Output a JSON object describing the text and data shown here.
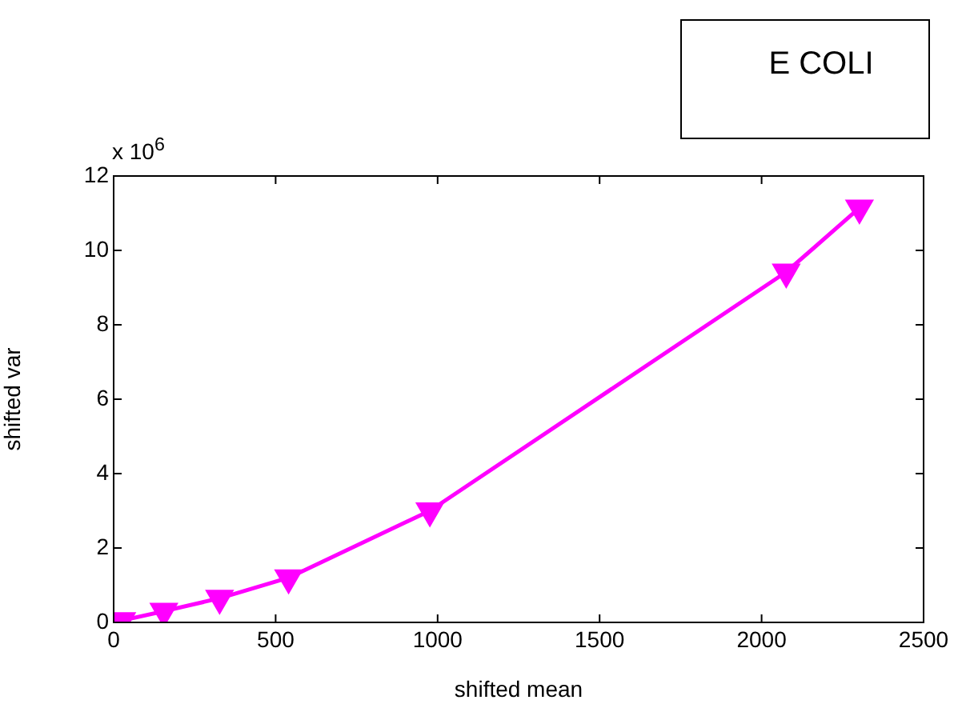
{
  "chart_data": {
    "type": "line",
    "xlabel": "shifted mean",
    "ylabel": "shifted var",
    "annotations": [
      "x 10$^{6}$",
      "E COLI"
    ],
    "x": [
      0,
      25,
      155,
      327,
      540,
      976,
      2076,
      2302
    ],
    "series": [
      {
        "color": "#ff00ff",
        "values": [
          0,
          0.05,
          0.3,
          0.65,
          1.2,
          3.0,
          9.42,
          11.14
        ]
      }
    ],
    "xlim": [
      0,
      2500
    ],
    "xticks": [
      0,
      500,
      1000,
      1500,
      2000,
      2500
    ],
    "ylim": [
      0,
      12
    ],
    "yticks": [
      0,
      2,
      4,
      6,
      8,
      10,
      12
    ],
    "marker": "triangle",
    "line_style": "solid"
  }
}
